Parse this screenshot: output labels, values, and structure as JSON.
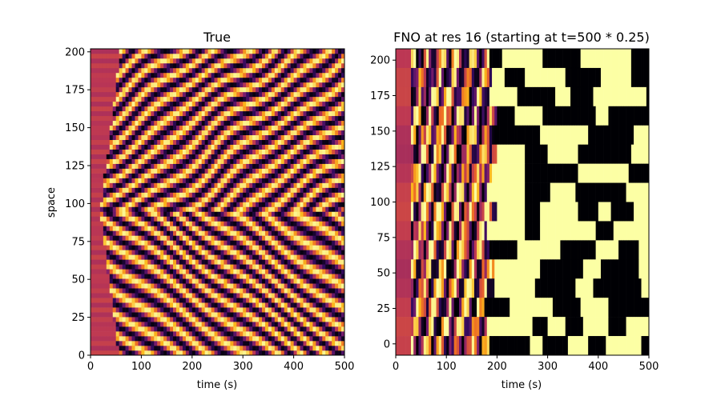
{
  "chart_data": [
    {
      "type": "heatmap",
      "title": "True",
      "xlabel": "time (s)",
      "ylabel": "space",
      "xlim": [
        0,
        500
      ],
      "ylim": [
        0,
        202
      ],
      "x_ticks": [
        0,
        100,
        200,
        300,
        400,
        500
      ],
      "y_ticks": [
        0,
        25,
        50,
        75,
        100,
        125,
        150,
        175,
        200
      ],
      "colormap": "inferno",
      "description_of_field": "Spatio-temporal stripes; near-uniform red region for t < ~50, diagonal bands converging toward space ~80-110 around t=300-400",
      "transient_end_time": 55
    },
    {
      "type": "heatmap",
      "title": "FNO at res 16 (starting at t=500 * 0.25)",
      "xlabel": "time (s)",
      "ylabel": "",
      "xlim": [
        0,
        500
      ],
      "ylim": [
        -8,
        208
      ],
      "x_ticks": [
        0,
        100,
        200,
        300,
        400,
        500
      ],
      "y_ticks": [
        0,
        25,
        50,
        75,
        100,
        125,
        150,
        175,
        200
      ],
      "colormap": "inferno",
      "rows": 16,
      "saturation_after_time": 190,
      "saturated_colors": [
        "#fcffa4",
        "#000004"
      ]
    }
  ],
  "colors": {
    "background": "#ffffff",
    "axis": "#000000",
    "inferno": [
      "#000004",
      "#320a5e",
      "#781c6d",
      "#bc3754",
      "#ed6925",
      "#fbb61a",
      "#fcffa4"
    ]
  }
}
